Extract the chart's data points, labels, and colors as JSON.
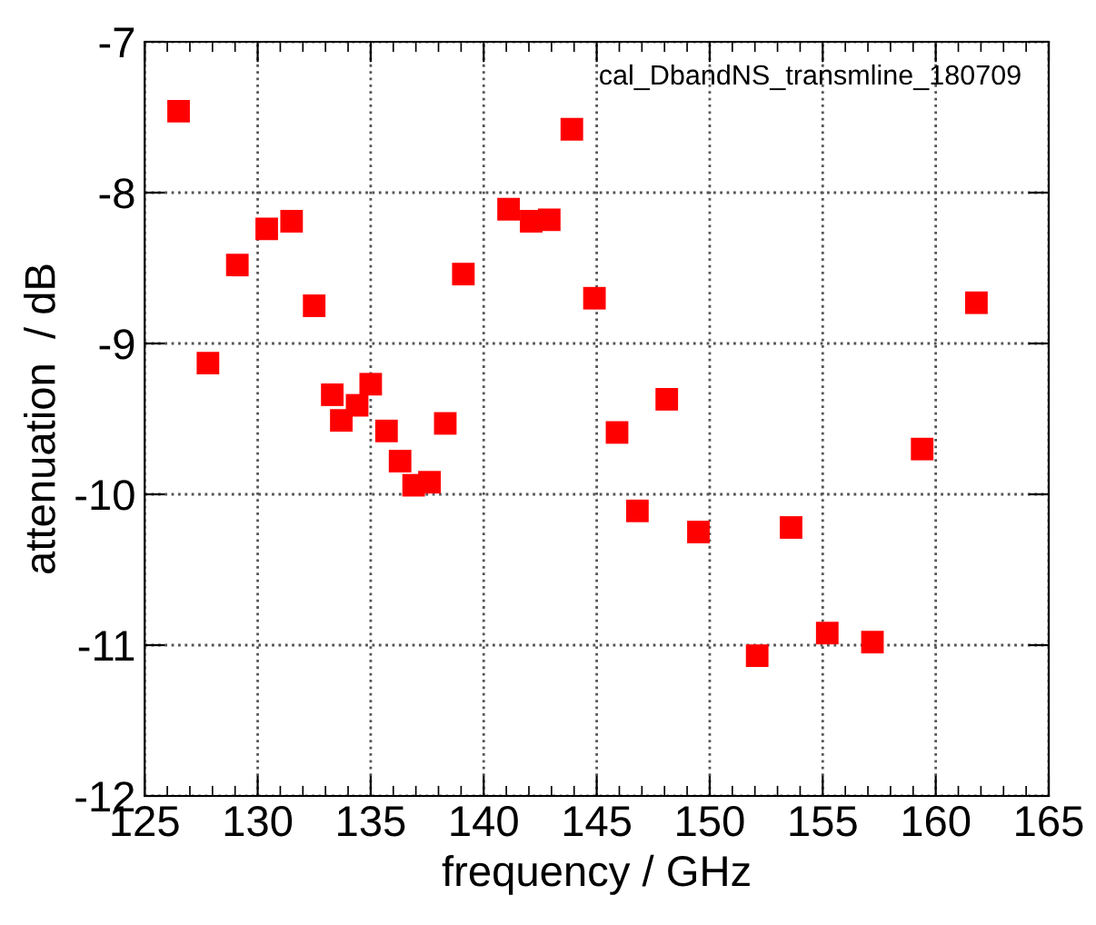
{
  "chart_data": {
    "type": "scatter",
    "xlabel": "frequency / GHz",
    "ylabel": "attenuation  / dB",
    "annotations": [
      "cal_DbandNS_transmline_180709"
    ],
    "x": [
      126.5,
      127.8,
      129.1,
      130.4,
      131.5,
      132.5,
      133.3,
      133.7,
      134.4,
      135.0,
      135.7,
      136.3,
      136.9,
      137.6,
      138.3,
      139.1,
      141.1,
      142.1,
      142.9,
      143.9,
      144.9,
      145.9,
      146.8,
      148.1,
      149.5,
      152.1,
      153.6,
      155.2,
      157.2,
      159.4,
      161.8
    ],
    "series": [
      {
        "color": "#ff0000",
        "values": [
          -7.46,
          -9.13,
          -8.48,
          -8.24,
          -8.19,
          -8.75,
          -9.34,
          -9.51,
          -9.41,
          -9.27,
          -9.58,
          -9.78,
          -9.94,
          -9.92,
          -9.53,
          -8.54,
          -8.11,
          -8.19,
          -8.18,
          -7.58,
          -8.7,
          -9.59,
          -10.11,
          -9.37,
          -10.25,
          -11.07,
          -10.22,
          -10.92,
          -10.98,
          -9.7,
          -8.73
        ]
      }
    ],
    "xlim": [
      125,
      165
    ],
    "xticks": [
      125,
      130,
      135,
      140,
      145,
      150,
      155,
      160,
      165
    ],
    "ylim": [
      -12,
      -7
    ],
    "yticks": [
      -12,
      -11,
      -10,
      -9,
      -8,
      -7
    ],
    "grid": true,
    "marker": "square",
    "legend": false
  }
}
